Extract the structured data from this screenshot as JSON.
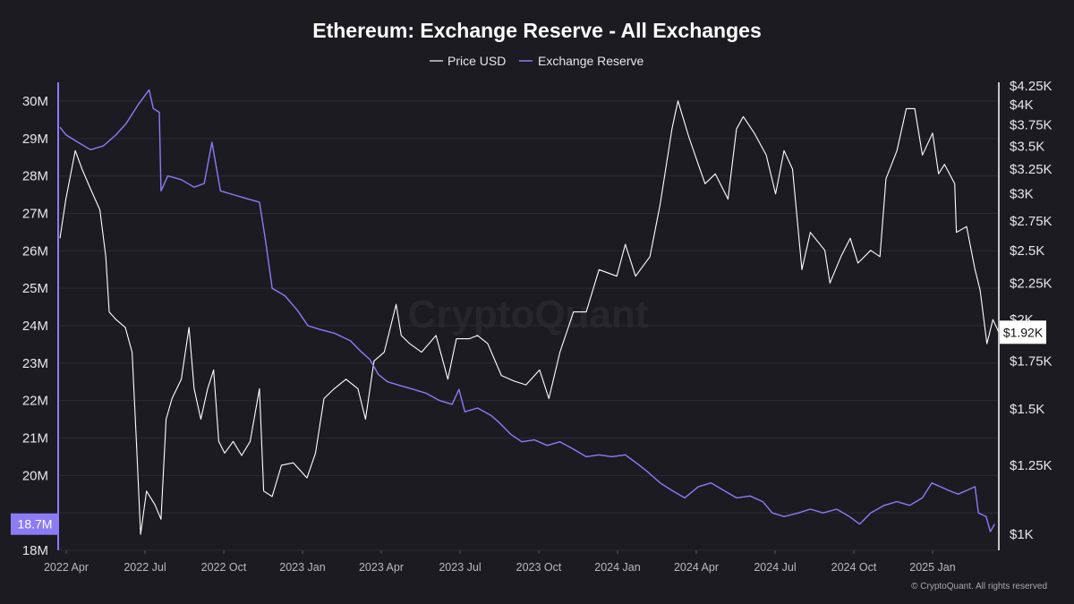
{
  "chart_data": {
    "type": "line",
    "title": "Ethereum: Exchange Reserve - All Exchanges",
    "legend": [
      "Price USD",
      "Exchange Reserve"
    ],
    "legend_position": "top-center",
    "watermark": "CryptoQuant",
    "copyright": "© CryptoQuant. All rights reserved",
    "colors": {
      "price": "#ffffff",
      "reserve": "#8b7cf6",
      "background": "#1c1b22",
      "grid": "#2c2b33"
    },
    "x_ticks": [
      "2022 Apr",
      "2022 Jul",
      "2022 Oct",
      "2023 Jan",
      "2023 Apr",
      "2023 Jul",
      "2023 Oct",
      "2024 Jan",
      "2024 Apr",
      "2024 Jul",
      "2024 Oct",
      "2025 Jan"
    ],
    "x_range": [
      "2022-03-15",
      "2025-03-25"
    ],
    "y_left": {
      "label": "",
      "range": [
        18000000,
        30500000
      ],
      "ticks": [
        {
          "value": 18000000,
          "label": "18M"
        },
        {
          "value": 19000000,
          "label": ""
        },
        {
          "value": 20000000,
          "label": "20M"
        },
        {
          "value": 21000000,
          "label": "21M"
        },
        {
          "value": 22000000,
          "label": "22M"
        },
        {
          "value": 23000000,
          "label": "23M"
        },
        {
          "value": 24000000,
          "label": "24M"
        },
        {
          "value": 25000000,
          "label": "25M"
        },
        {
          "value": 26000000,
          "label": "26M"
        },
        {
          "value": 27000000,
          "label": "27M"
        },
        {
          "value": 28000000,
          "label": "28M"
        },
        {
          "value": 29000000,
          "label": "29M"
        },
        {
          "value": 30000000,
          "label": "30M"
        }
      ],
      "current_label": "18.7M",
      "current_value": 18700000
    },
    "y_right": {
      "scale": "log",
      "range": [
        950,
        4300
      ],
      "ticks": [
        {
          "value": 1000,
          "label": "$1K"
        },
        {
          "value": 1250,
          "label": "$1.25K"
        },
        {
          "value": 1500,
          "label": "$1.5K"
        },
        {
          "value": 1750,
          "label": "$1.75K"
        },
        {
          "value": 2000,
          "label": "$2K"
        },
        {
          "value": 2250,
          "label": "$2.25K"
        },
        {
          "value": 2500,
          "label": "$2.5K"
        },
        {
          "value": 2750,
          "label": "$2.75K"
        },
        {
          "value": 3000,
          "label": "$3K"
        },
        {
          "value": 3250,
          "label": "$3.25K"
        },
        {
          "value": 3500,
          "label": "$3.5K"
        },
        {
          "value": 3750,
          "label": "$3.75K"
        },
        {
          "value": 4000,
          "label": "$4K"
        },
        {
          "value": 4250,
          "label": "$4.25K"
        }
      ],
      "current_label": "$1.92K",
      "current_value": 1920
    },
    "series": [
      {
        "name": "Price USD",
        "axis": "right",
        "points": [
          [
            "2022-03-15",
            2600
          ],
          [
            "2022-03-22",
            2950
          ],
          [
            "2022-04-02",
            3450
          ],
          [
            "2022-04-10",
            3250
          ],
          [
            "2022-04-20",
            3050
          ],
          [
            "2022-05-01",
            2850
          ],
          [
            "2022-05-08",
            2450
          ],
          [
            "2022-05-12",
            2050
          ],
          [
            "2022-05-20",
            2000
          ],
          [
            "2022-05-31",
            1950
          ],
          [
            "2022-06-08",
            1800
          ],
          [
            "2022-06-13",
            1350
          ],
          [
            "2022-06-18",
            1000
          ],
          [
            "2022-06-25",
            1150
          ],
          [
            "2022-07-05",
            1100
          ],
          [
            "2022-07-12",
            1050
          ],
          [
            "2022-07-18",
            1450
          ],
          [
            "2022-07-25",
            1550
          ],
          [
            "2022-08-05",
            1650
          ],
          [
            "2022-08-14",
            1950
          ],
          [
            "2022-08-20",
            1600
          ],
          [
            "2022-08-28",
            1450
          ],
          [
            "2022-09-05",
            1600
          ],
          [
            "2022-09-12",
            1700
          ],
          [
            "2022-09-18",
            1350
          ],
          [
            "2022-09-25",
            1300
          ],
          [
            "2022-10-05",
            1350
          ],
          [
            "2022-10-15",
            1290
          ],
          [
            "2022-10-25",
            1350
          ],
          [
            "2022-11-05",
            1600
          ],
          [
            "2022-11-10",
            1150
          ],
          [
            "2022-11-20",
            1130
          ],
          [
            "2022-12-01",
            1250
          ],
          [
            "2022-12-15",
            1260
          ],
          [
            "2022-12-31",
            1200
          ],
          [
            "2023-01-10",
            1300
          ],
          [
            "2023-01-20",
            1550
          ],
          [
            "2023-02-01",
            1600
          ],
          [
            "2023-02-15",
            1650
          ],
          [
            "2023-03-01",
            1600
          ],
          [
            "2023-03-10",
            1450
          ],
          [
            "2023-03-20",
            1750
          ],
          [
            "2023-04-01",
            1800
          ],
          [
            "2023-04-15",
            2100
          ],
          [
            "2023-04-21",
            1900
          ],
          [
            "2023-05-01",
            1850
          ],
          [
            "2023-05-15",
            1800
          ],
          [
            "2023-06-01",
            1900
          ],
          [
            "2023-06-15",
            1650
          ],
          [
            "2023-06-25",
            1880
          ],
          [
            "2023-07-10",
            1880
          ],
          [
            "2023-07-20",
            1900
          ],
          [
            "2023-08-01",
            1850
          ],
          [
            "2023-08-17",
            1670
          ],
          [
            "2023-09-01",
            1640
          ],
          [
            "2023-09-15",
            1620
          ],
          [
            "2023-10-01",
            1700
          ],
          [
            "2023-10-12",
            1550
          ],
          [
            "2023-10-25",
            1800
          ],
          [
            "2023-11-10",
            2050
          ],
          [
            "2023-11-25",
            2050
          ],
          [
            "2023-12-10",
            2350
          ],
          [
            "2023-12-31",
            2300
          ],
          [
            "2024-01-10",
            2550
          ],
          [
            "2024-01-22",
            2300
          ],
          [
            "2024-02-08",
            2450
          ],
          [
            "2024-02-20",
            2900
          ],
          [
            "2024-03-05",
            3700
          ],
          [
            "2024-03-12",
            4050
          ],
          [
            "2024-03-25",
            3600
          ],
          [
            "2024-04-05",
            3300
          ],
          [
            "2024-04-13",
            3100
          ],
          [
            "2024-04-25",
            3200
          ],
          [
            "2024-05-10",
            2950
          ],
          [
            "2024-05-20",
            3700
          ],
          [
            "2024-05-28",
            3850
          ],
          [
            "2024-06-10",
            3650
          ],
          [
            "2024-06-24",
            3400
          ],
          [
            "2024-07-05",
            3000
          ],
          [
            "2024-07-15",
            3450
          ],
          [
            "2024-07-25",
            3250
          ],
          [
            "2024-08-05",
            2350
          ],
          [
            "2024-08-15",
            2650
          ],
          [
            "2024-09-01",
            2500
          ],
          [
            "2024-09-07",
            2250
          ],
          [
            "2024-09-20",
            2450
          ],
          [
            "2024-10-01",
            2600
          ],
          [
            "2024-10-10",
            2400
          ],
          [
            "2024-10-25",
            2500
          ],
          [
            "2024-11-05",
            2450
          ],
          [
            "2024-11-12",
            3150
          ],
          [
            "2024-11-25",
            3450
          ],
          [
            "2024-12-06",
            3950
          ],
          [
            "2024-12-16",
            3950
          ],
          [
            "2024-12-25",
            3400
          ],
          [
            "2025-01-06",
            3650
          ],
          [
            "2025-01-13",
            3200
          ],
          [
            "2025-01-20",
            3300
          ],
          [
            "2025-02-01",
            3100
          ],
          [
            "2025-02-03",
            2650
          ],
          [
            "2025-02-15",
            2700
          ],
          [
            "2025-02-25",
            2350
          ],
          [
            "2025-03-03",
            2200
          ],
          [
            "2025-03-11",
            1850
          ],
          [
            "2025-03-18",
            2000
          ],
          [
            "2025-03-25",
            1920
          ]
        ]
      },
      {
        "name": "Exchange Reserve",
        "axis": "left",
        "points": [
          [
            "2022-03-15",
            29300000
          ],
          [
            "2022-03-22",
            29100000
          ],
          [
            "2022-04-05",
            28900000
          ],
          [
            "2022-04-20",
            28700000
          ],
          [
            "2022-05-05",
            28800000
          ],
          [
            "2022-05-20",
            29100000
          ],
          [
            "2022-06-01",
            29400000
          ],
          [
            "2022-06-15",
            29900000
          ],
          [
            "2022-06-28",
            30300000
          ],
          [
            "2022-07-03",
            29800000
          ],
          [
            "2022-07-10",
            29700000
          ],
          [
            "2022-07-12",
            27600000
          ],
          [
            "2022-07-20",
            28000000
          ],
          [
            "2022-08-05",
            27900000
          ],
          [
            "2022-08-20",
            27700000
          ],
          [
            "2022-09-01",
            27800000
          ],
          [
            "2022-09-10",
            28900000
          ],
          [
            "2022-09-20",
            27600000
          ],
          [
            "2022-10-05",
            27500000
          ],
          [
            "2022-10-20",
            27400000
          ],
          [
            "2022-11-05",
            27300000
          ],
          [
            "2022-11-12",
            26300000
          ],
          [
            "2022-11-20",
            25000000
          ],
          [
            "2022-12-05",
            24800000
          ],
          [
            "2022-12-20",
            24400000
          ],
          [
            "2023-01-01",
            24000000
          ],
          [
            "2023-01-15",
            23900000
          ],
          [
            "2023-02-01",
            23800000
          ],
          [
            "2023-02-20",
            23600000
          ],
          [
            "2023-03-05",
            23300000
          ],
          [
            "2023-03-15",
            23100000
          ],
          [
            "2023-03-25",
            22700000
          ],
          [
            "2023-04-05",
            22500000
          ],
          [
            "2023-04-20",
            22400000
          ],
          [
            "2023-05-05",
            22300000
          ],
          [
            "2023-05-20",
            22200000
          ],
          [
            "2023-06-05",
            22000000
          ],
          [
            "2023-06-20",
            21900000
          ],
          [
            "2023-06-28",
            22300000
          ],
          [
            "2023-07-05",
            21700000
          ],
          [
            "2023-07-20",
            21800000
          ],
          [
            "2023-08-05",
            21600000
          ],
          [
            "2023-08-15",
            21400000
          ],
          [
            "2023-08-28",
            21100000
          ],
          [
            "2023-09-10",
            20900000
          ],
          [
            "2023-09-25",
            20950000
          ],
          [
            "2023-10-10",
            20800000
          ],
          [
            "2023-10-25",
            20900000
          ],
          [
            "2023-11-10",
            20700000
          ],
          [
            "2023-11-25",
            20500000
          ],
          [
            "2023-12-10",
            20550000
          ],
          [
            "2023-12-25",
            20500000
          ],
          [
            "2024-01-10",
            20550000
          ],
          [
            "2024-01-25",
            20300000
          ],
          [
            "2024-02-05",
            20100000
          ],
          [
            "2024-02-20",
            19800000
          ],
          [
            "2024-03-05",
            19600000
          ],
          [
            "2024-03-20",
            19400000
          ],
          [
            "2024-04-05",
            19700000
          ],
          [
            "2024-04-20",
            19800000
          ],
          [
            "2024-05-05",
            19600000
          ],
          [
            "2024-05-20",
            19400000
          ],
          [
            "2024-06-05",
            19450000
          ],
          [
            "2024-06-20",
            19300000
          ],
          [
            "2024-07-01",
            19000000
          ],
          [
            "2024-07-15",
            18900000
          ],
          [
            "2024-08-01",
            19000000
          ],
          [
            "2024-08-15",
            19100000
          ],
          [
            "2024-08-30",
            19000000
          ],
          [
            "2024-09-15",
            19100000
          ],
          [
            "2024-09-30",
            18900000
          ],
          [
            "2024-10-12",
            18700000
          ],
          [
            "2024-10-25",
            19000000
          ],
          [
            "2024-11-10",
            19200000
          ],
          [
            "2024-11-25",
            19300000
          ],
          [
            "2024-12-10",
            19200000
          ],
          [
            "2024-12-25",
            19400000
          ],
          [
            "2025-01-05",
            19800000
          ],
          [
            "2025-01-15",
            19700000
          ],
          [
            "2025-01-25",
            19600000
          ],
          [
            "2025-02-05",
            19500000
          ],
          [
            "2025-02-15",
            19600000
          ],
          [
            "2025-02-25",
            19700000
          ],
          [
            "2025-03-01",
            19000000
          ],
          [
            "2025-03-10",
            18900000
          ],
          [
            "2025-03-15",
            18500000
          ],
          [
            "2025-03-20",
            18700000
          ]
        ]
      }
    ]
  }
}
